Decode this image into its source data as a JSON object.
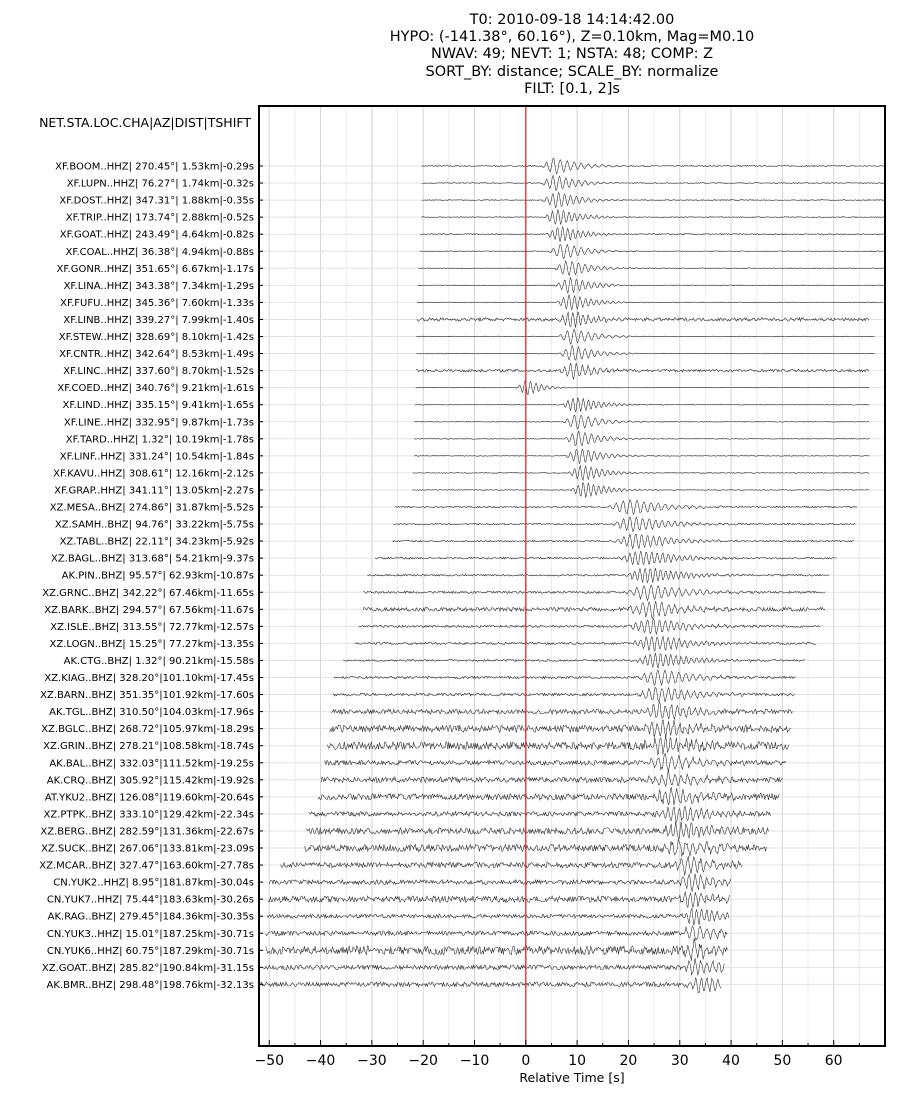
{
  "chart_data": {
    "type": "line",
    "title_lines": [
      "T0: 2010-09-18 14:14:42.00",
      "HYPO: (-141.38°, 60.16°), Z=0.10km, Mag=M0.10",
      "NWAV: 49; NEVT: 1; NSTA: 48; COMP: Z",
      "SORT_BY: distance; SCALE_BY: normalize",
      "FILT: [0.1, 2]s"
    ],
    "ylabel_header": "NET.STA.LOC.CHA|AZ|DIST|TSHIFT",
    "xlabel": "Relative Time [s]",
    "xlim": [
      -52,
      70
    ],
    "xticks": [
      -50,
      -40,
      -30,
      -20,
      -10,
      0,
      10,
      20,
      30,
      40,
      50,
      60
    ],
    "xtick_labels": [
      "−50",
      "−40",
      "−30",
      "−20",
      "−10",
      "0",
      "10",
      "20",
      "30",
      "40",
      "50",
      "60"
    ],
    "grid": true,
    "reference_line": {
      "x": 0,
      "color": "#e8262c"
    },
    "trace_color": "#000000",
    "traces": [
      {
        "label": "XF.BOOM..HHZ| 270.45°|  1.53km|-0.29s",
        "start": -20.3,
        "end": 70,
        "arrival": 5.5,
        "width": 4.5,
        "noise": 0.08
      },
      {
        "label": "XF.LUPN..HHZ|  76.27°|  1.74km|-0.32s",
        "start": -20.3,
        "end": 70,
        "arrival": 5.5,
        "width": 4.5,
        "noise": 0.06
      },
      {
        "label": "XF.DOST..HHZ| 347.31°|  1.88km|-0.35s",
        "start": -20.3,
        "end": 70,
        "arrival": 5.8,
        "width": 4.5,
        "noise": 0.06
      },
      {
        "label": "XF.TRIP..HHZ| 173.74°|  2.88km|-0.52s",
        "start": -20.4,
        "end": 70,
        "arrival": 6.0,
        "width": 4.5,
        "noise": 0.06
      },
      {
        "label": "XF.GOAT..HHZ| 243.49°|  4.64km|-0.82s",
        "start": -20.6,
        "end": 70,
        "arrival": 6.5,
        "width": 4.5,
        "noise": 0.08
      },
      {
        "label": "XF.COAL..HHZ|  36.38°|  4.94km|-0.88s",
        "start": -20.7,
        "end": 70,
        "arrival": 7.0,
        "width": 4.5,
        "noise": 0.05
      },
      {
        "label": "XF.GONR..HHZ| 351.65°|  6.67km|-1.17s",
        "start": -21.0,
        "end": 70,
        "arrival": 8.0,
        "width": 4.5,
        "noise": 0.05
      },
      {
        "label": "XF.LINA..HHZ| 343.38°|  7.34km|-1.29s",
        "start": -21.1,
        "end": 69.8,
        "arrival": 8.3,
        "width": 4.5,
        "noise": 0.05
      },
      {
        "label": "XF.FUFU..HHZ| 345.36°|  7.60km|-1.33s",
        "start": -21.2,
        "end": 69.8,
        "arrival": 8.5,
        "width": 4.5,
        "noise": 0.05
      },
      {
        "label": "XF.LINB..HHZ| 339.27°|  7.99km|-1.40s",
        "start": -21.2,
        "end": 67,
        "arrival": 8.7,
        "width": 4.5,
        "noise": 0.22
      },
      {
        "label": "XF.STEW..HHZ| 328.69°|  8.10km|-1.42s",
        "start": -21.3,
        "end": 68,
        "arrival": 8.8,
        "width": 4.5,
        "noise": 0.05
      },
      {
        "label": "XF.CNTR..HHZ| 342.64°|  8.53km|-1.49s",
        "start": -21.3,
        "end": 68,
        "arrival": 9.0,
        "width": 4.5,
        "noise": 0.05
      },
      {
        "label": "XF.LINC..HHZ| 337.60°|  8.70km|-1.52s",
        "start": -21.4,
        "end": 67,
        "arrival": 9.1,
        "width": 4.5,
        "noise": 0.18
      },
      {
        "label": "XF.COED..HHZ| 340.76°|  9.21km|-1.61s",
        "start": -21.5,
        "end": 67,
        "arrival": 0.0,
        "width": 3.0,
        "noise": 0.02
      },
      {
        "label": "XF.LIND..HHZ| 335.15°|  9.41km|-1.65s",
        "start": -21.6,
        "end": 67,
        "arrival": 9.5,
        "width": 4.5,
        "noise": 0.05
      },
      {
        "label": "XF.LINE..HHZ| 332.95°|  9.87km|-1.73s",
        "start": -21.7,
        "end": 67,
        "arrival": 9.8,
        "width": 4.5,
        "noise": 0.05
      },
      {
        "label": "XF.TARD..HHZ|   1.32°| 10.19km|-1.78s",
        "start": -21.8,
        "end": 67,
        "arrival": 10.0,
        "width": 4.5,
        "noise": 0.05
      },
      {
        "label": "XF.LINF..HHZ| 331.24°| 10.54km|-1.84s",
        "start": -21.8,
        "end": 67,
        "arrival": 10.2,
        "width": 4.5,
        "noise": 0.05
      },
      {
        "label": "XF.KAVU..HHZ| 308.61°| 12.16km|-2.12s",
        "start": -22.0,
        "end": 67,
        "arrival": 10.8,
        "width": 4.5,
        "noise": 0.05
      },
      {
        "label": "XF.GRAP..HHZ| 341.11°| 13.05km|-2.27s",
        "start": -22.2,
        "end": 67,
        "arrival": 11.2,
        "width": 4.5,
        "noise": 0.05
      },
      {
        "label": "XZ.MESA..BHZ| 274.86°| 31.87km|-5.52s",
        "start": -25.5,
        "end": 64.5,
        "arrival": 20.0,
        "width": 7.0,
        "noise": 0.1
      },
      {
        "label": "XZ.SAMH..BHZ|  94.76°| 33.22km|-5.75s",
        "start": -25.8,
        "end": 64.2,
        "arrival": 20.5,
        "width": 7.0,
        "noise": 0.1
      },
      {
        "label": "XZ.TABL..BHZ|  22.11°| 34.23km|-5.92s",
        "start": -26.0,
        "end": 64,
        "arrival": 21.0,
        "width": 7.0,
        "noise": 0.1
      },
      {
        "label": "XZ.BAGL..BHZ| 313.68°| 54.21km|-9.37s",
        "start": -29.4,
        "end": 60.6,
        "arrival": 22.0,
        "width": 7.0,
        "noise": 0.12
      },
      {
        "label": "AK.PIN..BHZ|  95.57°| 62.93km|-10.87s",
        "start": -30.9,
        "end": 59.1,
        "arrival": 23.0,
        "width": 7.0,
        "noise": 0.12
      },
      {
        "label": "XZ.GRNC..BHZ| 342.22°| 67.46km|-11.65s",
        "start": -31.7,
        "end": 58.3,
        "arrival": 23.5,
        "width": 7.0,
        "noise": 0.15
      },
      {
        "label": "XZ.BARK..BHZ| 294.57°| 67.56km|-11.67s",
        "start": -31.7,
        "end": 58.3,
        "arrival": 23.5,
        "width": 7.0,
        "noise": 0.25
      },
      {
        "label": "XZ.ISLE..BHZ| 313.55°| 72.77km|-12.57s",
        "start": -32.6,
        "end": 57.4,
        "arrival": 24.0,
        "width": 7.0,
        "noise": 0.15
      },
      {
        "label": "XZ.LOGN..BHZ|  15.25°| 77.27km|-13.35s",
        "start": -33.4,
        "end": 56.6,
        "arrival": 24.5,
        "width": 7.0,
        "noise": 0.15
      },
      {
        "label": "AK.CTG..BHZ|   1.32°| 90.21km|-15.58s",
        "start": -35.6,
        "end": 54.4,
        "arrival": 25.0,
        "width": 7.0,
        "noise": 0.12
      },
      {
        "label": "XZ.KIAG..BHZ| 328.20°|101.10km|-17.45s",
        "start": -37.4,
        "end": 52.6,
        "arrival": 25.5,
        "width": 7.0,
        "noise": 0.15
      },
      {
        "label": "XZ.BARN..BHZ| 351.35°|101.92km|-17.60s",
        "start": -37.6,
        "end": 52.4,
        "arrival": 25.5,
        "width": 7.0,
        "noise": 0.18
      },
      {
        "label": "AK.TGL..BHZ| 310.50°|104.03km|-17.96s",
        "start": -38.0,
        "end": 52,
        "arrival": 26.0,
        "width": 7.0,
        "noise": 0.3
      },
      {
        "label": "XZ.BGLC..BHZ| 268.72°|105.97km|-18.29s",
        "start": -38.3,
        "end": 51.7,
        "arrival": 26.0,
        "width": 7.0,
        "noise": 0.45
      },
      {
        "label": "XZ.GRIN..BHZ| 278.21°|108.58km|-18.74s",
        "start": -38.7,
        "end": 51.3,
        "arrival": 26.5,
        "width": 7.0,
        "noise": 0.5
      },
      {
        "label": "AK.BAL..BHZ| 332.03°|111.52km|-19.25s",
        "start": -39.3,
        "end": 50.7,
        "arrival": 27.0,
        "width": 7.0,
        "noise": 0.3
      },
      {
        "label": "AK.CRQ..BHZ| 305.92°|115.42km|-19.92s",
        "start": -39.9,
        "end": 50.1,
        "arrival": 27.5,
        "width": 7.0,
        "noise": 0.35
      },
      {
        "label": "AT.YKU2..BHZ| 126.08°|119.60km|-20.64s",
        "start": -40.6,
        "end": 49.4,
        "arrival": 28.0,
        "width": 7.0,
        "noise": 0.4
      },
      {
        "label": "XZ.PTPK..BHZ| 333.10°|129.42km|-22.34s",
        "start": -42.3,
        "end": 47.7,
        "arrival": 29.0,
        "width": 7.0,
        "noise": 0.3
      },
      {
        "label": "XZ.BERG..BHZ| 282.59°|131.36km|-22.67s",
        "start": -42.7,
        "end": 47.3,
        "arrival": 29.5,
        "width": 7.0,
        "noise": 0.4
      },
      {
        "label": "XZ.SUCK..BHZ| 267.06°|133.81km|-23.09s",
        "start": -43.1,
        "end": 46.9,
        "arrival": 29.5,
        "width": 7.0,
        "noise": 0.45
      },
      {
        "label": "XZ.MCAR..BHZ| 327.47°|163.60km|-27.78s",
        "start": -47.8,
        "end": 42.2,
        "arrival": 31.0,
        "width": 6.0,
        "noise": 0.35
      },
      {
        "label": "CN.YUK2..HHZ|   8.95°|181.87km|-30.04s",
        "start": -50.0,
        "end": 40,
        "arrival": 32.0,
        "width": 5.0,
        "noise": 0.3
      },
      {
        "label": "CN.YUK7..HHZ|  75.44°|183.63km|-30.26s",
        "start": -50.3,
        "end": 39.7,
        "arrival": 32.0,
        "width": 5.0,
        "noise": 0.4
      },
      {
        "label": "AK.RAG..BHZ| 279.45°|184.36km|-30.35s",
        "start": -50.4,
        "end": 39.6,
        "arrival": 32.5,
        "width": 5.0,
        "noise": 0.25
      },
      {
        "label": "CN.YUK3..HHZ|  15.01°|187.25km|-30.71s",
        "start": -50.7,
        "end": 39.3,
        "arrival": 32.5,
        "width": 5.0,
        "noise": 0.3
      },
      {
        "label": "CN.YUK6..HHZ|  60.75°|187.29km|-30.71s",
        "start": -50.7,
        "end": 39.3,
        "arrival": 32.5,
        "width": 5.0,
        "noise": 0.55
      },
      {
        "label": "XZ.GOAT..BHZ| 285.82°|190.84km|-31.15s",
        "start": -51.2,
        "end": 38.8,
        "arrival": 33.0,
        "width": 5.0,
        "noise": 0.3
      },
      {
        "label": "AK.BMR..BHZ| 298.48°|198.76km|-32.13s",
        "start": -52.0,
        "end": 38,
        "arrival": 34.0,
        "width": 5.0,
        "noise": 0.3
      }
    ]
  }
}
